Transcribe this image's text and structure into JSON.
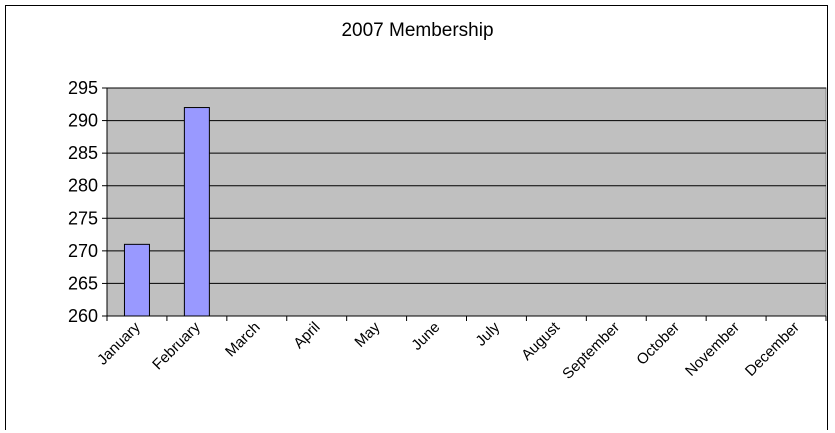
{
  "chart_data": {
    "type": "bar",
    "title": "2007 Membership",
    "categories": [
      "January",
      "February",
      "March",
      "April",
      "May",
      "June",
      "July",
      "August",
      "September",
      "October",
      "November",
      "December"
    ],
    "values": [
      271,
      292,
      null,
      null,
      null,
      null,
      null,
      null,
      null,
      null,
      null,
      null
    ],
    "ylim": [
      260,
      295
    ],
    "yticks": [
      260,
      265,
      270,
      275,
      280,
      285,
      290,
      295
    ],
    "grid": true,
    "legend": "none",
    "colors": {
      "bar_fill": "#9999ff",
      "plot_background": "#c0c0c0",
      "gridline": "#000000"
    }
  }
}
